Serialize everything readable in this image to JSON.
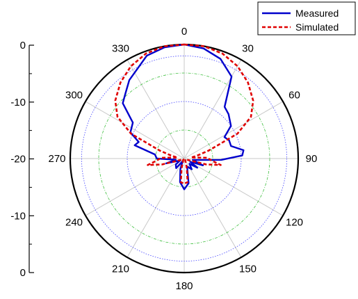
{
  "chart_data": {
    "type": "polar-line",
    "title": "",
    "angle_unit": "degrees",
    "angle_zero": "top",
    "angle_direction": "clockwise",
    "angle_ticks": [
      "0",
      "30",
      "60",
      "90",
      "120",
      "150",
      "180",
      "210",
      "240",
      "270",
      "300",
      "330"
    ],
    "radial_axis": {
      "ticks": [
        "0",
        "-10",
        "-20",
        "-10",
        "0"
      ],
      "range": [
        -20,
        0
      ],
      "unit": "dB"
    },
    "grid": {
      "outer_circle_color": "#000000",
      "radial_lines_color": "#c8c8c8",
      "inner_circle_colors": [
        "#4040ff",
        "#40c040"
      ]
    },
    "legend": {
      "placement": "top-right"
    },
    "series": [
      {
        "name": "Measured",
        "color": "#0000cc",
        "style": "solid",
        "points": [
          [
            0,
            0
          ],
          [
            10,
            -0.4
          ],
          [
            20,
            -1.4
          ],
          [
            30,
            -3.4
          ],
          [
            38,
            -8.5
          ],
          [
            45,
            -9.0
          ],
          [
            55,
            -10.0
          ],
          [
            62,
            -12.0
          ],
          [
            68,
            -11.5
          ],
          [
            75,
            -11.5
          ],
          [
            82,
            -9.5
          ],
          [
            87,
            -9.8
          ],
          [
            92,
            -13.5
          ],
          [
            100,
            -18.5
          ],
          [
            110,
            -16.5
          ],
          [
            118,
            -18.8
          ],
          [
            125,
            -17.2
          ],
          [
            135,
            -18.7
          ],
          [
            145,
            -17.7
          ],
          [
            160,
            -18.5
          ],
          [
            170,
            -15.6
          ],
          [
            180,
            -14.6
          ],
          [
            190,
            -15.8
          ],
          [
            200,
            -18.0
          ],
          [
            210,
            -19.5
          ],
          [
            220,
            -17.8
          ],
          [
            235,
            -18.2
          ],
          [
            245,
            -19.2
          ],
          [
            255,
            -16.7
          ],
          [
            262,
            -18.5
          ],
          [
            270,
            -15.2
          ],
          [
            278,
            -14.8
          ],
          [
            285,
            -11.0
          ],
          [
            290,
            -11.5
          ],
          [
            296,
            -9.5
          ],
          [
            305,
            -9.0
          ],
          [
            312,
            -5.5
          ],
          [
            318,
            -4.6
          ],
          [
            325,
            -3.2
          ],
          [
            340,
            -0.8
          ],
          [
            350,
            -0.2
          ],
          [
            360,
            0
          ]
        ]
      },
      {
        "name": "Simulated",
        "color": "#e00000",
        "style": "dashed",
        "points": [
          [
            0,
            0
          ],
          [
            10,
            0
          ],
          [
            20,
            -0.4
          ],
          [
            30,
            -1.3
          ],
          [
            40,
            -2.6
          ],
          [
            50,
            -4.2
          ],
          [
            58,
            -6.2
          ],
          [
            65,
            -9.7
          ],
          [
            72,
            -15.5
          ],
          [
            78,
            -17.8
          ],
          [
            82,
            -18.8
          ],
          [
            88,
            -16.0
          ],
          [
            95,
            -15.0
          ],
          [
            100,
            -13.5
          ],
          [
            105,
            -16.0
          ],
          [
            110,
            -19.2
          ],
          [
            130,
            -19.8
          ],
          [
            150,
            -19.6
          ],
          [
            165,
            -18.2
          ],
          [
            172,
            -15.8
          ],
          [
            180,
            -15.6
          ],
          [
            188,
            -15.8
          ],
          [
            195,
            -18.2
          ],
          [
            210,
            -19.6
          ],
          [
            230,
            -19.8
          ],
          [
            250,
            -19.2
          ],
          [
            255,
            -16.0
          ],
          [
            260,
            -13.5
          ],
          [
            265,
            -15.0
          ],
          [
            272,
            -16.0
          ],
          [
            278,
            -18.8
          ],
          [
            282,
            -17.8
          ],
          [
            288,
            -15.5
          ],
          [
            295,
            -9.7
          ],
          [
            302,
            -6.2
          ],
          [
            310,
            -4.2
          ],
          [
            320,
            -2.6
          ],
          [
            330,
            -1.3
          ],
          [
            340,
            -0.4
          ],
          [
            350,
            0
          ],
          [
            360,
            0
          ]
        ]
      }
    ]
  }
}
